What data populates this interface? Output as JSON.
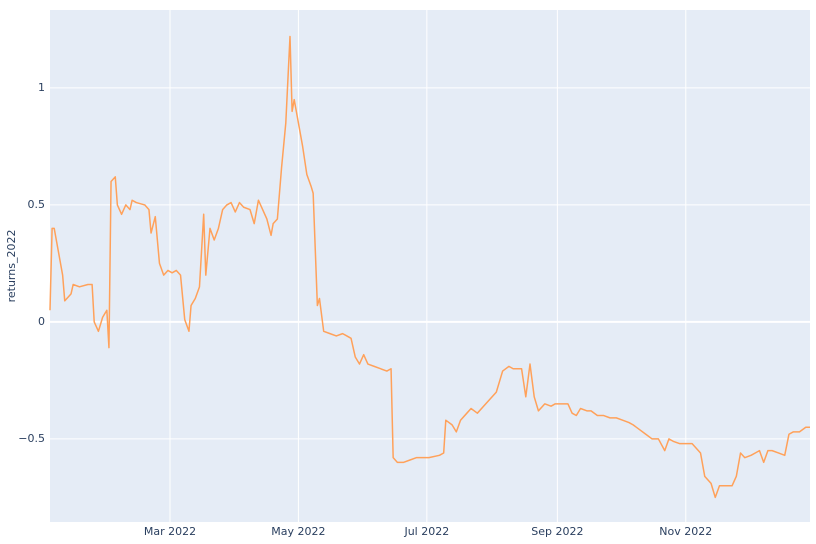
{
  "chart_data": {
    "type": "line",
    "y_axis_label": "returns_2022",
    "x": [
      3,
      4,
      5,
      9,
      10,
      13,
      14,
      17,
      21,
      23,
      24,
      26,
      28,
      30,
      31,
      32,
      34,
      35,
      37,
      39,
      41,
      42,
      44,
      48,
      50,
      51,
      53,
      55,
      57,
      59,
      61,
      63,
      65,
      67,
      69,
      70,
      72,
      74,
      76,
      77,
      79,
      81,
      83,
      85,
      87,
      89,
      91,
      93,
      95,
      98,
      100,
      102,
      104,
      106,
      108,
      109,
      111,
      113,
      115,
      117,
      118,
      119,
      121,
      123,
      125,
      127,
      128,
      130,
      131,
      133,
      136,
      139,
      142,
      144,
      146,
      148,
      150,
      152,
      154,
      157,
      160,
      163,
      165,
      166,
      168,
      171,
      174,
      177,
      181,
      183,
      188,
      190,
      191,
      194,
      196,
      198,
      201,
      203,
      206,
      209,
      212,
      215,
      218,
      221,
      223,
      225,
      227,
      229,
      231,
      233,
      235,
      238,
      241,
      243,
      246,
      249,
      251,
      253,
      255,
      258,
      260,
      263,
      266,
      269,
      272,
      275,
      278,
      280,
      283,
      286,
      289,
      292,
      295,
      297,
      299,
      302,
      305,
      308,
      312,
      314,
      317,
      319,
      321,
      324,
      327,
      329,
      331,
      333,
      336,
      338,
      340,
      342,
      344,
      346,
      349,
      352,
      354,
      356,
      359,
      362,
      364
    ],
    "series": [
      {
        "name": "returns_2022",
        "color": "#ffa15a",
        "values": [
          0.05,
          0.4,
          0.4,
          0.2,
          0.09,
          0.12,
          0.16,
          0.15,
          0.16,
          0.16,
          0,
          -0.04,
          0.02,
          0.05,
          -0.11,
          0.6,
          0.62,
          0.5,
          0.46,
          0.5,
          0.48,
          0.52,
          0.51,
          0.5,
          0.48,
          0.38,
          0.45,
          0.25,
          0.2,
          0.22,
          0.21,
          0.22,
          0.2,
          0.01,
          -0.04,
          0.07,
          0.1,
          0.15,
          0.46,
          0.2,
          0.4,
          0.35,
          0.4,
          0.48,
          0.5,
          0.51,
          0.47,
          0.51,
          0.49,
          0.48,
          0.42,
          0.52,
          0.48,
          0.44,
          0.37,
          0.42,
          0.44,
          0.66,
          0.85,
          1.22,
          0.9,
          0.95,
          0.85,
          0.75,
          0.63,
          0.58,
          0.55,
          0.07,
          0.1,
          -0.04,
          -0.05,
          -0.06,
          -0.05,
          -0.06,
          -0.07,
          -0.15,
          -0.18,
          -0.14,
          -0.18,
          -0.19,
          -0.2,
          -0.21,
          -0.2,
          -0.58,
          -0.6,
          -0.6,
          -0.59,
          -0.58,
          -0.58,
          -0.58,
          -0.57,
          -0.56,
          -0.42,
          -0.44,
          -0.47,
          -0.42,
          -0.39,
          -0.37,
          -0.39,
          -0.36,
          -0.33,
          -0.3,
          -0.21,
          -0.19,
          -0.2,
          -0.2,
          -0.2,
          -0.32,
          -0.18,
          -0.32,
          -0.38,
          -0.35,
          -0.36,
          -0.35,
          -0.35,
          -0.35,
          -0.39,
          -0.4,
          -0.37,
          -0.38,
          -0.38,
          -0.4,
          -0.4,
          -0.41,
          -0.41,
          -0.42,
          -0.43,
          -0.44,
          -0.46,
          -0.48,
          -0.5,
          -0.5,
          -0.55,
          -0.5,
          -0.51,
          -0.52,
          -0.52,
          -0.52,
          -0.56,
          -0.66,
          -0.69,
          -0.75,
          -0.7,
          -0.7,
          -0.7,
          -0.66,
          -0.56,
          -0.58,
          -0.57,
          -0.56,
          -0.55,
          -0.6,
          -0.55,
          -0.55,
          -0.56,
          -0.57,
          -0.48,
          -0.47,
          -0.47,
          -0.45,
          -0.45
        ]
      }
    ],
    "xlim": [
      3,
      364
    ],
    "xticks": [
      {
        "value": 60,
        "label": "Mar 2022"
      },
      {
        "value": 121,
        "label": "May 2022"
      },
      {
        "value": 182,
        "label": "Jul 2022"
      },
      {
        "value": 244,
        "label": "Sep 2022"
      },
      {
        "value": 305,
        "label": "Nov 2022"
      }
    ],
    "ylim": [
      -0.855,
      1.333
    ],
    "yticks": [
      {
        "value": -0.5,
        "label": "−0.5"
      },
      0,
      0.5,
      1
    ],
    "grid": true
  }
}
